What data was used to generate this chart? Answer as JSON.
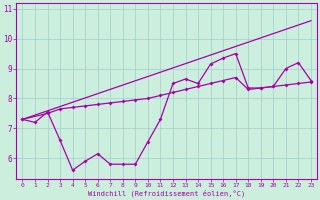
{
  "xlabel": "Windchill (Refroidissement éolien,°C)",
  "xlim": [
    -0.5,
    23.5
  ],
  "ylim": [
    5.3,
    11.2
  ],
  "yticks": [
    6,
    7,
    8,
    9,
    10,
    11
  ],
  "xticks": [
    0,
    1,
    2,
    3,
    4,
    5,
    6,
    7,
    8,
    9,
    10,
    11,
    12,
    13,
    14,
    15,
    16,
    17,
    18,
    19,
    20,
    21,
    22,
    23
  ],
  "background_color": "#cceedd",
  "line_color": "#aa00aa",
  "line1_x": [
    0,
    1,
    2,
    3,
    4,
    5,
    6,
    7,
    8,
    9,
    10,
    11,
    12,
    13,
    14,
    15,
    16,
    17,
    18,
    19,
    20,
    21,
    22,
    23
  ],
  "line1_y": [
    7.3,
    7.2,
    7.55,
    6.6,
    5.6,
    5.9,
    6.15,
    5.8,
    5.8,
    5.8,
    6.55,
    7.3,
    8.5,
    8.65,
    8.5,
    9.15,
    9.35,
    9.5,
    8.35,
    8.35,
    8.4,
    9.0,
    9.2,
    8.6
  ],
  "line2_x": [
    0,
    2,
    3,
    4,
    5,
    6,
    7,
    8,
    9,
    10,
    11,
    12,
    13,
    14,
    15,
    16,
    17,
    18,
    19,
    20,
    21,
    22,
    23
  ],
  "line2_y": [
    7.3,
    7.5,
    7.65,
    7.7,
    7.75,
    7.8,
    7.85,
    7.9,
    7.95,
    8.0,
    8.1,
    8.2,
    8.3,
    8.4,
    8.5,
    8.6,
    8.7,
    8.3,
    8.35,
    8.4,
    8.45,
    8.5,
    8.55
  ],
  "line3_x": [
    0,
    23
  ],
  "line3_y": [
    7.3,
    10.6
  ]
}
